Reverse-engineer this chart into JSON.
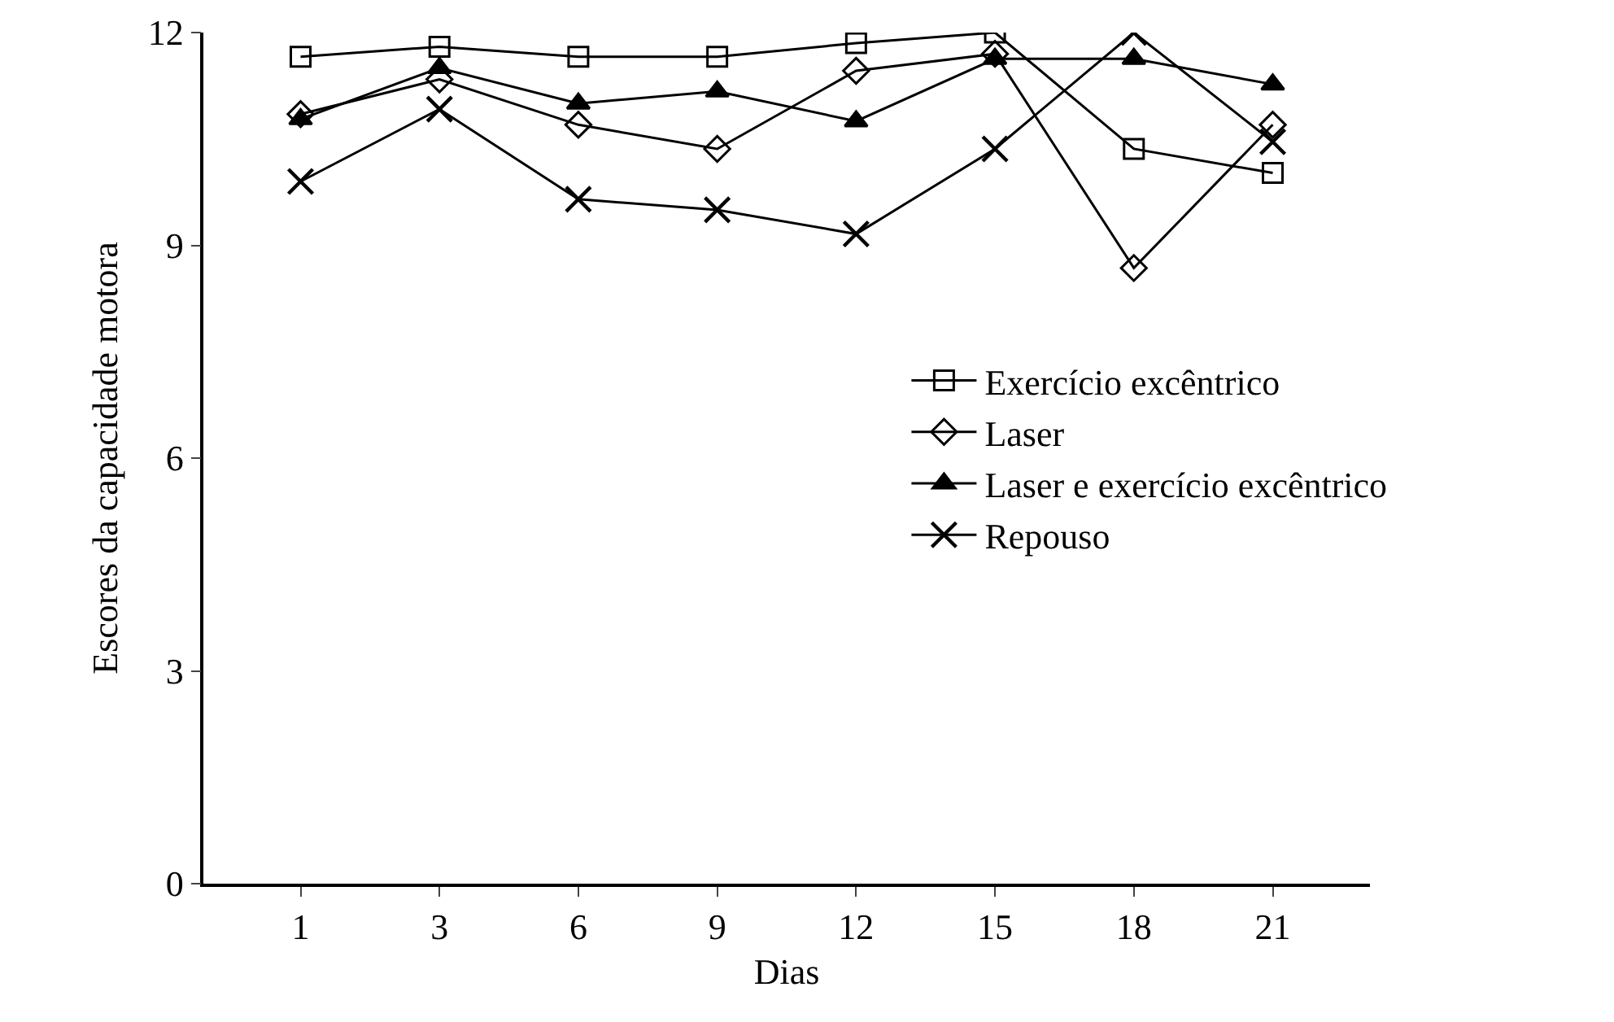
{
  "chart_data": {
    "type": "line",
    "xlabel": "Dias",
    "ylabel": "Escores da capacidade motora",
    "categories": [
      "1",
      "3",
      "6",
      "9",
      "12",
      "15",
      "18",
      "21"
    ],
    "series": [
      {
        "name": "Exercício excêntrico",
        "color": "#000000",
        "marker": "square-open",
        "values": [
          11.66,
          11.8,
          11.66,
          11.66,
          11.85,
          12.0,
          10.36,
          10.02
        ]
      },
      {
        "name": "Laser",
        "color": "#000000",
        "marker": "diamond-open",
        "values": [
          10.85,
          11.34,
          10.7,
          10.36,
          11.46,
          11.7,
          8.68,
          10.7
        ]
      },
      {
        "name": "Laser e exercício excêntrico",
        "color": "#000000",
        "marker": "triangle",
        "values": [
          10.78,
          11.5,
          11.0,
          11.17,
          10.75,
          11.63,
          11.63,
          11.27
        ]
      },
      {
        "name": "Repouso",
        "color": "#000000",
        "marker": "cross",
        "values": [
          9.9,
          10.92,
          9.65,
          9.5,
          9.16,
          10.36,
          12.0,
          10.46
        ]
      }
    ],
    "ylim": [
      0,
      12
    ],
    "yticks": [
      0,
      3,
      6,
      9,
      12
    ],
    "grid": false,
    "legend": "right",
    "line_style": "solid"
  }
}
